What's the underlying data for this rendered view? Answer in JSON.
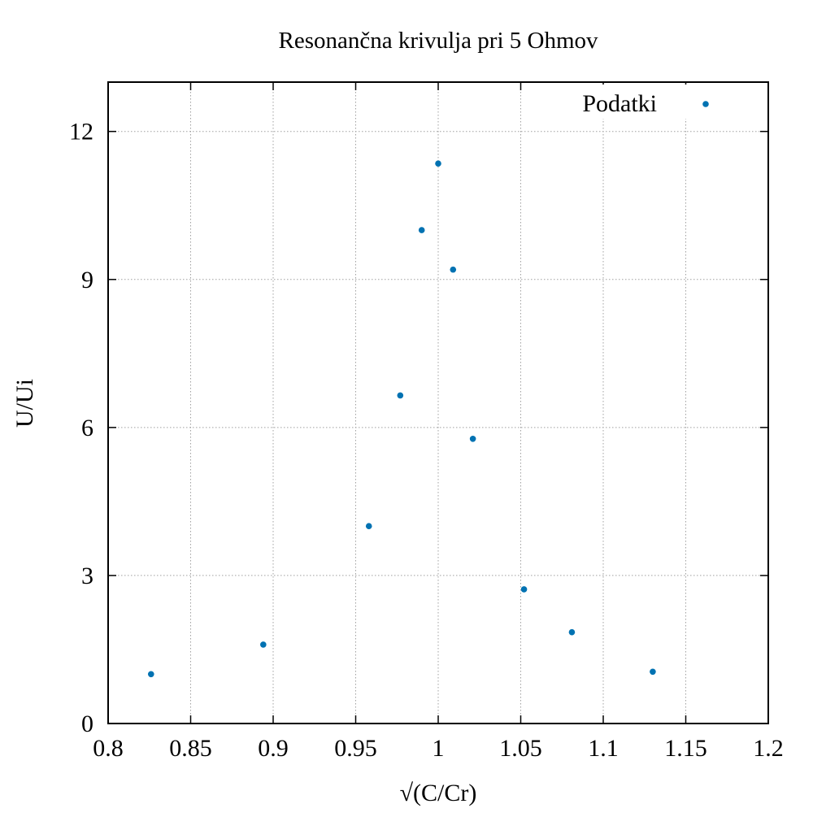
{
  "chart_data": {
    "type": "scatter",
    "title": "Resonančna krivulja pri 5 Ohmov",
    "xlabel": "√(C/Cr)",
    "ylabel": "U/Ui",
    "xlim": [
      0.8,
      1.2
    ],
    "ylim": [
      0,
      13
    ],
    "xticks": [
      0.8,
      0.85,
      0.9,
      0.95,
      1.0,
      1.05,
      1.1,
      1.15,
      1.2
    ],
    "xtick_labels": [
      "0.8",
      "0.85",
      "0.9",
      "0.95",
      "1",
      "1.05",
      "1.1",
      "1.15",
      "1.2"
    ],
    "yticks": [
      0,
      3,
      6,
      9,
      12
    ],
    "ytick_labels": [
      "0",
      "3",
      "6",
      "9",
      "12"
    ],
    "grid": true,
    "legend_position": "top-right",
    "series": [
      {
        "name": "Podatki",
        "color": "#0072b2",
        "marker": "dot",
        "points": [
          {
            "x": 0.826,
            "y": 1.0
          },
          {
            "x": 0.894,
            "y": 1.6
          },
          {
            "x": 0.958,
            "y": 4.0
          },
          {
            "x": 0.977,
            "y": 6.65
          },
          {
            "x": 0.99,
            "y": 10.0
          },
          {
            "x": 1.0,
            "y": 11.35
          },
          {
            "x": 1.009,
            "y": 9.2
          },
          {
            "x": 1.021,
            "y": 5.77
          },
          {
            "x": 1.052,
            "y": 2.72
          },
          {
            "x": 1.081,
            "y": 1.85
          },
          {
            "x": 1.13,
            "y": 1.05
          }
        ]
      }
    ]
  }
}
